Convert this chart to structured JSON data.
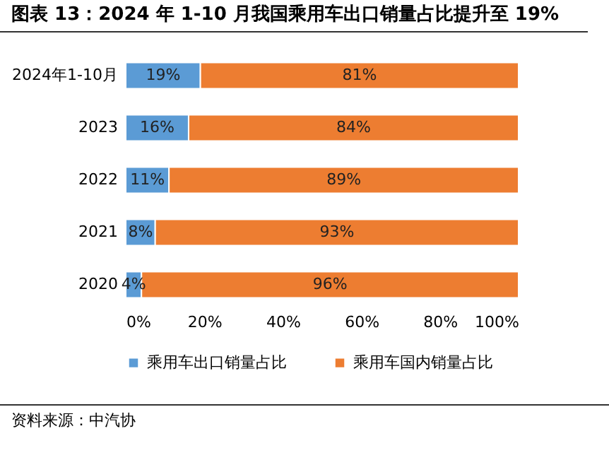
{
  "chart_data": {
    "type": "bar",
    "orientation": "horizontal",
    "stacked": true,
    "title": "图表 13：2024 年 1-10 月我国乘用车出口销量占比提升至 19%",
    "categories": [
      "2024年1-10月",
      "2023",
      "2022",
      "2021",
      "2020"
    ],
    "series": [
      {
        "name": "乘用车出口销量占比",
        "color": "#5b9bd5",
        "values": [
          19,
          16,
          11,
          7.5,
          4
        ],
        "value_labels": [
          "19%",
          "16%",
          "11%",
          "8%",
          "4%"
        ]
      },
      {
        "name": "乘用车国内销量占比",
        "color": "#ed7d31",
        "values": [
          81,
          84,
          89,
          92.5,
          96
        ],
        "value_labels": [
          "81%",
          "84%",
          "89%",
          "93%",
          "96%"
        ]
      }
    ],
    "xlim": [
      0,
      100
    ],
    "xticks": [
      {
        "value": 0,
        "label": "0%"
      },
      {
        "value": 20,
        "label": "20%"
      },
      {
        "value": 40,
        "label": "40%"
      },
      {
        "value": 60,
        "label": "60%"
      },
      {
        "value": 80,
        "label": "80%"
      },
      {
        "value": 100,
        "label": "100%"
      }
    ],
    "grid": false,
    "legend": "bottom",
    "annotations": [
      "资料来源：中汽协"
    ]
  }
}
